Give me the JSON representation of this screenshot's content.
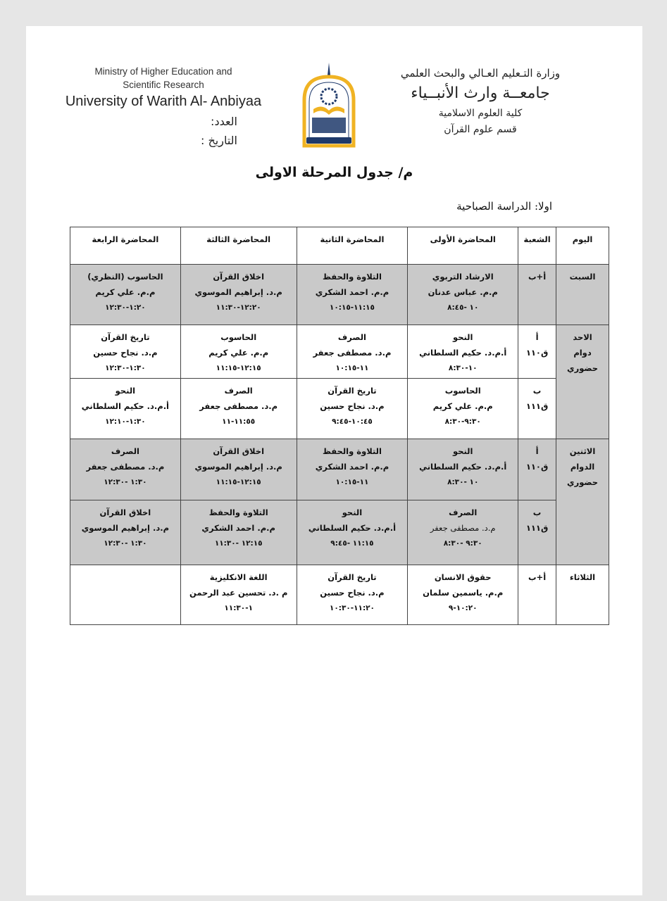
{
  "header": {
    "en_ministry_line1": "Ministry of Higher Education and",
    "en_ministry_line2": "Scientific Research",
    "en_university": "University of Warith Al- Anbiyaa",
    "number_label": "العدد:",
    "date_label": "التاريخ :",
    "ar_ministry": "وزارة التـعليم العـالي والبحث العلمي",
    "ar_university": "جامعــة وارث الأنبــياء",
    "ar_college": "كلية العلوم الاسلامية",
    "ar_department": "قسم علوم القرآن",
    "logo_text": "جامعة وارث الأنبياء 2017 كلية العلوم الاسلامية UNIVERSITY OF WARITH AL-ANBIYAA"
  },
  "title": "م/ جدول المرحلة الاولى",
  "subtitle": "اولا: الدراسة الصباحية",
  "colors": {
    "shaded_row": "#c9c9c9",
    "border": "#444444"
  },
  "table": {
    "headers": [
      "اليوم",
      "الشعبة",
      "المحاضرة الأولى",
      "المحاضرة الثانية",
      "المحاضرة الثالثة",
      "المحاضرة الرابعة"
    ],
    "days": [
      {
        "day": [
          "السبت"
        ],
        "shaded": true,
        "groups": [
          {
            "section": [
              "أ+ب"
            ],
            "lectures": [
              {
                "subject": "الارشاد التربوي",
                "teacher": "م.م. عباس عدنان",
                "time": "١٠ -٨:٤٥"
              },
              {
                "subject": "التلاوة والحفظ",
                "teacher": "م.م. احمد الشكري",
                "time": "١١:١٥-١٠:١٥"
              },
              {
                "subject": "اخلاق القرآن",
                "teacher": "م.د. إبراهيم الموسوي",
                "time": "١٢:٢٠-١١:٣٠"
              },
              {
                "subject": "الحاسوب (النظري)",
                "teacher": "م.م. علي كريم",
                "time": "١:٢٠-١٢:٣٠"
              }
            ]
          }
        ]
      },
      {
        "day": [
          "الاحد",
          "دوام",
          "حضوري"
        ],
        "shaded": false,
        "groups": [
          {
            "section": [
              "أ",
              "ق١١٠"
            ],
            "lectures": [
              {
                "subject": "النحو",
                "teacher": "أ.م.د. حكيم السلطاني",
                "time": "١٠-٨:٣٠"
              },
              {
                "subject": "الصرف",
                "teacher": "م.د. مصطفى جعفر",
                "time": "١١-١٠:١٥"
              },
              {
                "subject": "الحاسوب",
                "teacher": "م.م. علي كريم",
                "time": "١٢:١٥-١١:١٥"
              },
              {
                "subject": "تاريخ القرآن",
                "teacher": "م.د. نجاح حسين",
                "time": "١:٣٠-١٢:٣٠"
              }
            ]
          },
          {
            "section": [
              "ب",
              "ق١١١"
            ],
            "lectures": [
              {
                "subject": "الحاسوب",
                "teacher": "م.م. علي كريم",
                "time": "٩:٣٠-٨:٣٠"
              },
              {
                "subject": "تاريخ القرآن",
                "teacher": "م.د. نجاح حسين",
                "time": "١٠:٤٥-٩:٤٥"
              },
              {
                "subject": "الصرف",
                "teacher": "م.د. مصطفى جعفر",
                "time": "١١:٥٥-١١"
              },
              {
                "subject": "النحو",
                "teacher": "أ.م.د. حكيم السلطاني",
                "time": "١:٣٠-١٢:١٠"
              }
            ]
          }
        ]
      },
      {
        "day": [
          "الاثنين",
          "الدوام",
          "حضوري"
        ],
        "shaded": true,
        "groups": [
          {
            "section": [
              "أ",
              "ق١١٠"
            ],
            "lectures": [
              {
                "subject": "النحو",
                "teacher": "أ.م.د. حكيم السلطاني",
                "time": "١٠ -٨:٣٠"
              },
              {
                "subject": "التلاوة والحفظ",
                "teacher": "م.م. احمد الشكري",
                "time": "١١-١٠:١٥"
              },
              {
                "subject": "اخلاق القرآن",
                "teacher": "م.د. إبراهيم الموسوي",
                "time": "١٢:١٥-١١:١٥"
              },
              {
                "subject": "الصرف",
                "teacher": "م.د. مصطفى جعفر",
                "time": "١:٣٠ -١٢:٣٠"
              }
            ]
          },
          {
            "section": [
              "ب",
              "ق١١١"
            ],
            "lectures": [
              {
                "subject": "الصرف",
                "teacher": "م.د. مصطفى جعفر",
                "time": "٩:٣٠ -٨:٣٠"
              },
              {
                "subject": "النحو",
                "teacher": "أ.م.د. حكيم السلطاني",
                "time": "١١:١٥ -٩:٤٥"
              },
              {
                "subject": "التلاوة والحفظ",
                "teacher": "م.م. احمد الشكري",
                "time": "١٢:١٥ -١١:٣٠"
              },
              {
                "subject": "اخلاق القرآن",
                "teacher": "م.د. إبراهيم الموسوي",
                "time": "١:٣٠ -١٢:٣٠"
              }
            ]
          }
        ]
      },
      {
        "day": [
          "الثلاثاء"
        ],
        "shaded": false,
        "groups": [
          {
            "section": [
              "أ+ب"
            ],
            "lectures": [
              {
                "subject": "حقوق الانسان",
                "teacher": "م.م. ياسمين سلمان",
                "time": "١٠:٢٠-٩"
              },
              {
                "subject": "تاريخ القرآن",
                "teacher": "م.د. نجاح حسين",
                "time": "١١:٢٠-١٠:٣٠"
              },
              {
                "subject": "اللغة الانكليزية",
                "teacher": "م .د. تحسين عبد الرحمن",
                "time": "١-١١:٣٠"
              },
              {
                "subject": "",
                "teacher": "",
                "time": ""
              }
            ]
          }
        ]
      }
    ]
  }
}
